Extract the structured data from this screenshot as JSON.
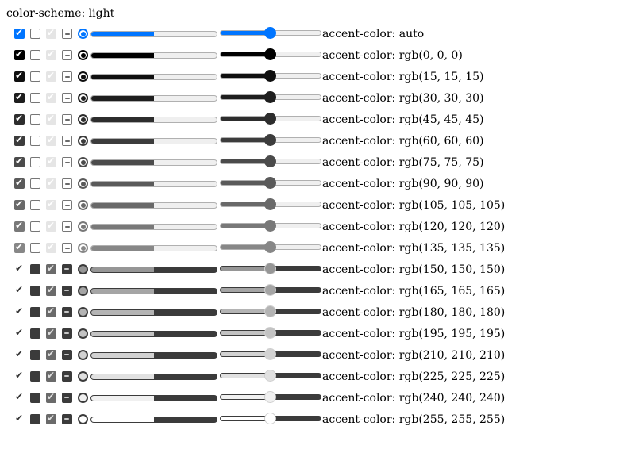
{
  "page": {
    "heading": "color-scheme: light"
  },
  "rows": [
    {
      "label": "accent-color: auto",
      "accent": "#0075ff",
      "progress_value": 0.5,
      "range_value": 0.5
    },
    {
      "label": "accent-color: rgb(0, 0, 0)",
      "accent": "#000000",
      "progress_value": 0.5,
      "range_value": 0.5
    },
    {
      "label": "accent-color: rgb(15, 15, 15)",
      "accent": "#0f0f0f",
      "progress_value": 0.5,
      "range_value": 0.5
    },
    {
      "label": "accent-color: rgb(30, 30, 30)",
      "accent": "#1e1e1e",
      "progress_value": 0.5,
      "range_value": 0.5
    },
    {
      "label": "accent-color: rgb(45, 45, 45)",
      "accent": "#2d2d2d",
      "progress_value": 0.5,
      "range_value": 0.5
    },
    {
      "label": "accent-color: rgb(60, 60, 60)",
      "accent": "#3c3c3c",
      "progress_value": 0.5,
      "range_value": 0.5
    },
    {
      "label": "accent-color: rgb(75, 75, 75)",
      "accent": "#4b4b4b",
      "progress_value": 0.5,
      "range_value": 0.5
    },
    {
      "label": "accent-color: rgb(90, 90, 90)",
      "accent": "#5a5a5a",
      "progress_value": 0.5,
      "range_value": 0.5
    },
    {
      "label": "accent-color: rgb(105, 105, 105)",
      "accent": "#696969",
      "progress_value": 0.5,
      "range_value": 0.5
    },
    {
      "label": "accent-color: rgb(120, 120, 120)",
      "accent": "#787878",
      "progress_value": 0.5,
      "range_value": 0.5
    },
    {
      "label": "accent-color: rgb(135, 135, 135)",
      "accent": "#878787",
      "progress_value": 0.5,
      "range_value": 0.5
    },
    {
      "label": "accent-color: rgb(150, 150, 150)",
      "accent": "#969696",
      "progress_value": 0.5,
      "range_value": 0.5
    },
    {
      "label": "accent-color: rgb(165, 165, 165)",
      "accent": "#a5a5a5",
      "progress_value": 0.5,
      "range_value": 0.5
    },
    {
      "label": "accent-color: rgb(180, 180, 180)",
      "accent": "#b4b4b4",
      "progress_value": 0.5,
      "range_value": 0.5
    },
    {
      "label": "accent-color: rgb(195, 195, 195)",
      "accent": "#c3c3c3",
      "progress_value": 0.5,
      "range_value": 0.5
    },
    {
      "label": "accent-color: rgb(210, 210, 210)",
      "accent": "#d2d2d2",
      "progress_value": 0.5,
      "range_value": 0.5
    },
    {
      "label": "accent-color: rgb(225, 225, 225)",
      "accent": "#e1e1e1",
      "progress_value": 0.5,
      "range_value": 0.5
    },
    {
      "label": "accent-color: rgb(240, 240, 240)",
      "accent": "#f0f0f0",
      "progress_value": 0.5,
      "range_value": 0.5
    },
    {
      "label": "accent-color: rgb(255, 255, 255)",
      "accent": "#ffffff",
      "progress_value": 0.5,
      "range_value": 0.5
    }
  ]
}
